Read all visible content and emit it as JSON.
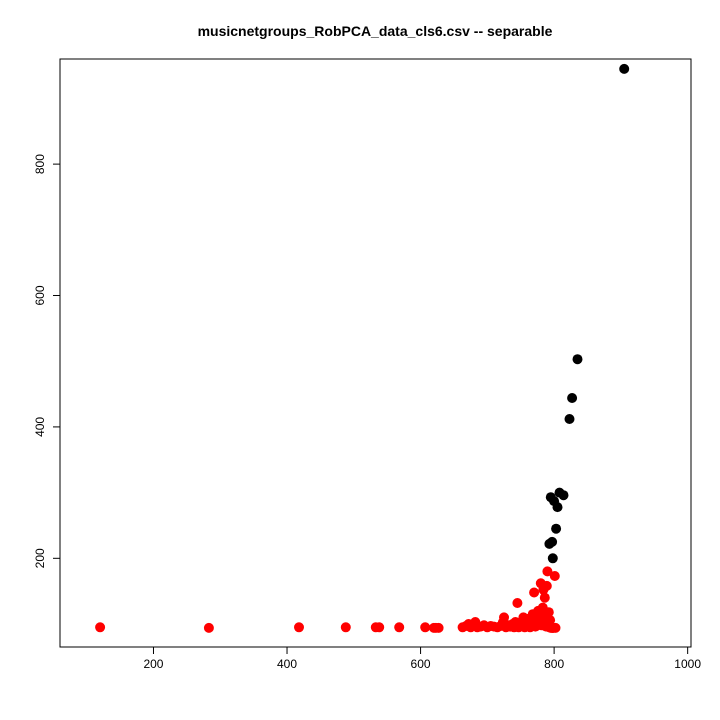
{
  "chart_data": {
    "type": "scatter",
    "title": "musicnetgroups_RobPCA_data_cls6.csv  --  separable",
    "xlabel": "",
    "ylabel": "",
    "xlim": [
      60,
      1005
    ],
    "ylim": [
      65,
      960
    ],
    "x_ticks": [
      200,
      400,
      600,
      800,
      1000
    ],
    "y_ticks": [
      200,
      400,
      600,
      800
    ],
    "grid": false,
    "series": [
      {
        "color": "#000000",
        "points": [
          [
            905,
            945
          ],
          [
            835,
            503
          ],
          [
            827,
            444
          ],
          [
            823,
            412
          ],
          [
            808,
            300
          ],
          [
            814,
            296
          ],
          [
            795,
            293
          ],
          [
            800,
            287
          ],
          [
            805,
            278
          ],
          [
            803,
            245
          ],
          [
            797,
            225
          ],
          [
            793,
            222
          ],
          [
            798,
            200
          ]
        ]
      },
      {
        "color": "#ff0000",
        "points": [
          [
            120,
            95
          ],
          [
            283,
            94
          ],
          [
            418,
            95
          ],
          [
            488,
            95
          ],
          [
            533,
            95
          ],
          [
            538,
            95
          ],
          [
            568,
            95
          ],
          [
            607,
            95
          ],
          [
            620,
            94
          ],
          [
            623,
            94
          ],
          [
            627,
            94
          ],
          [
            663,
            95
          ],
          [
            668,
            97
          ],
          [
            672,
            100
          ],
          [
            675,
            95
          ],
          [
            678,
            98
          ],
          [
            682,
            103
          ],
          [
            685,
            95
          ],
          [
            690,
            96
          ],
          [
            695,
            98
          ],
          [
            700,
            95
          ],
          [
            705,
            97
          ],
          [
            710,
            96
          ],
          [
            715,
            95
          ],
          [
            720,
            97
          ],
          [
            723,
            102
          ],
          [
            725,
            110
          ],
          [
            728,
            95
          ],
          [
            732,
            98
          ],
          [
            735,
            96
          ],
          [
            738,
            100
          ],
          [
            740,
            95
          ],
          [
            742,
            103
          ],
          [
            745,
            132
          ],
          [
            747,
            95
          ],
          [
            750,
            98
          ],
          [
            752,
            104
          ],
          [
            754,
            110
          ],
          [
            756,
            95
          ],
          [
            758,
            100
          ],
          [
            760,
            97
          ],
          [
            762,
            108
          ],
          [
            764,
            95
          ],
          [
            766,
            103
          ],
          [
            768,
            115
          ],
          [
            770,
            148
          ],
          [
            772,
            96
          ],
          [
            774,
            110
          ],
          [
            776,
            120
          ],
          [
            778,
            101
          ],
          [
            780,
            162
          ],
          [
            781,
            98
          ],
          [
            783,
            125
          ],
          [
            784,
            152
          ],
          [
            785,
            104
          ],
          [
            786,
            140
          ],
          [
            787,
            113
          ],
          [
            788,
            96
          ],
          [
            789,
            158
          ],
          [
            790,
            180
          ],
          [
            791,
            100
          ],
          [
            792,
            118
          ],
          [
            793,
            95
          ],
          [
            794,
            106
          ],
          [
            795,
            94
          ],
          [
            797,
            94
          ],
          [
            798,
            94
          ],
          [
            799,
            94
          ],
          [
            801,
            173
          ],
          [
            802,
            94
          ],
          [
            760,
            102
          ],
          [
            776,
            100
          ],
          [
            786,
            118
          ],
          [
            770,
            105
          ],
          [
            755,
            100
          ],
          [
            748,
            96
          ],
          [
            742,
            99
          ]
        ]
      }
    ]
  }
}
